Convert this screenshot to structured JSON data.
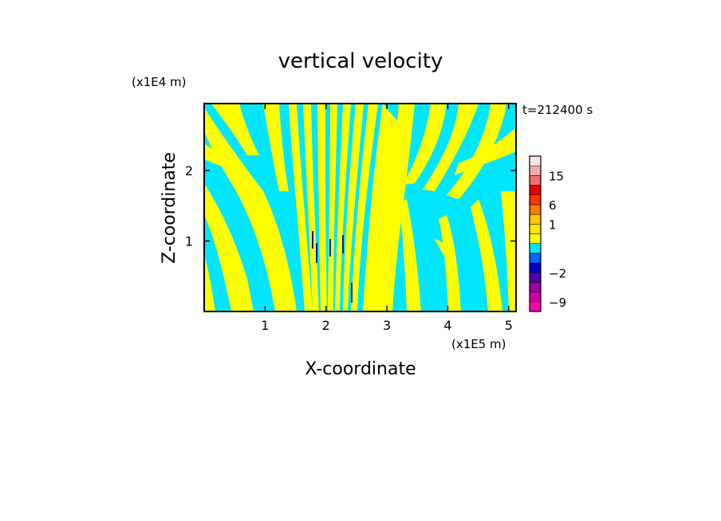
{
  "chart_data": {
    "type": "heatmap",
    "title": "vertical velocity",
    "xlabel": "X-coordinate",
    "ylabel": "Z-coordinate",
    "x_scale_label": "(x1E5 m)",
    "y_scale_label": "(x1E4 m)",
    "time_label": "t=212400 s",
    "xlim": [
      0,
      5.12
    ],
    "ylim": [
      0,
      2.95
    ],
    "x_ticks": [
      1,
      2,
      3,
      4,
      5
    ],
    "x_tick_labels": [
      "1",
      "2",
      "3",
      "4",
      "5"
    ],
    "y_ticks": [
      1,
      2
    ],
    "y_tick_labels": [
      "1",
      "2"
    ],
    "field_description": "contour-filled vertical velocity; dominant bands yellow (weak positive) and cyan (weak negative), narrow dark-blue extrema near x=1.8-2.5",
    "colorbar": {
      "levels": [
        -12,
        -9,
        -6,
        -3,
        -2,
        -1,
        -0.5,
        0,
        0.5,
        1,
        3,
        6,
        9,
        12,
        15,
        18,
        21
      ],
      "colors": [
        "#ff00aa",
        "#cc00aa",
        "#9900aa",
        "#5500aa",
        "#0000c8",
        "#0064ff",
        "#00e6ff",
        "#ffff00",
        "#ffe600",
        "#ffc800",
        "#ff7800",
        "#ff3200",
        "#e60000",
        "#f07070",
        "#f5aaaa",
        "#fde6e6"
      ],
      "tick_values": [
        15,
        6,
        1,
        -2,
        -9
      ],
      "tick_labels": [
        "15",
        "6",
        "1",
        "−2",
        "−9"
      ]
    }
  }
}
